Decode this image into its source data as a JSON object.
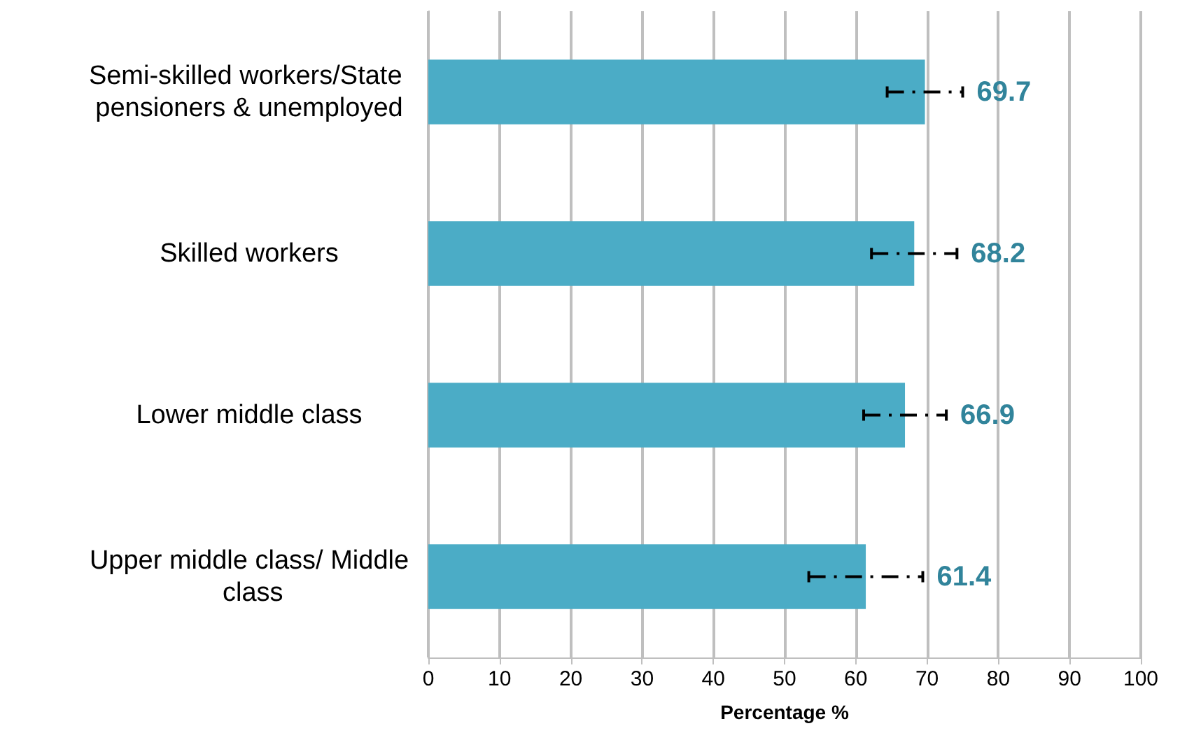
{
  "chart_data": {
    "type": "bar",
    "orientation": "horizontal",
    "xlabel": "Percentage %",
    "categories": [
      "Semi-skilled workers/State pensioners & unemployed",
      "Skilled workers",
      "Lower middle class",
      "Upper middle class/ Middle class"
    ],
    "values": [
      69.7,
      68.2,
      66.9,
      61.4
    ],
    "color": "#4bacc6",
    "errors": [
      5.3,
      6,
      5.8,
      8
    ],
    "data_labels": true,
    "xlim": [
      0,
      100
    ],
    "xticks": [
      0,
      10,
      20,
      30,
      40,
      50,
      60,
      70,
      80,
      90,
      100
    ],
    "grid": "x"
  }
}
